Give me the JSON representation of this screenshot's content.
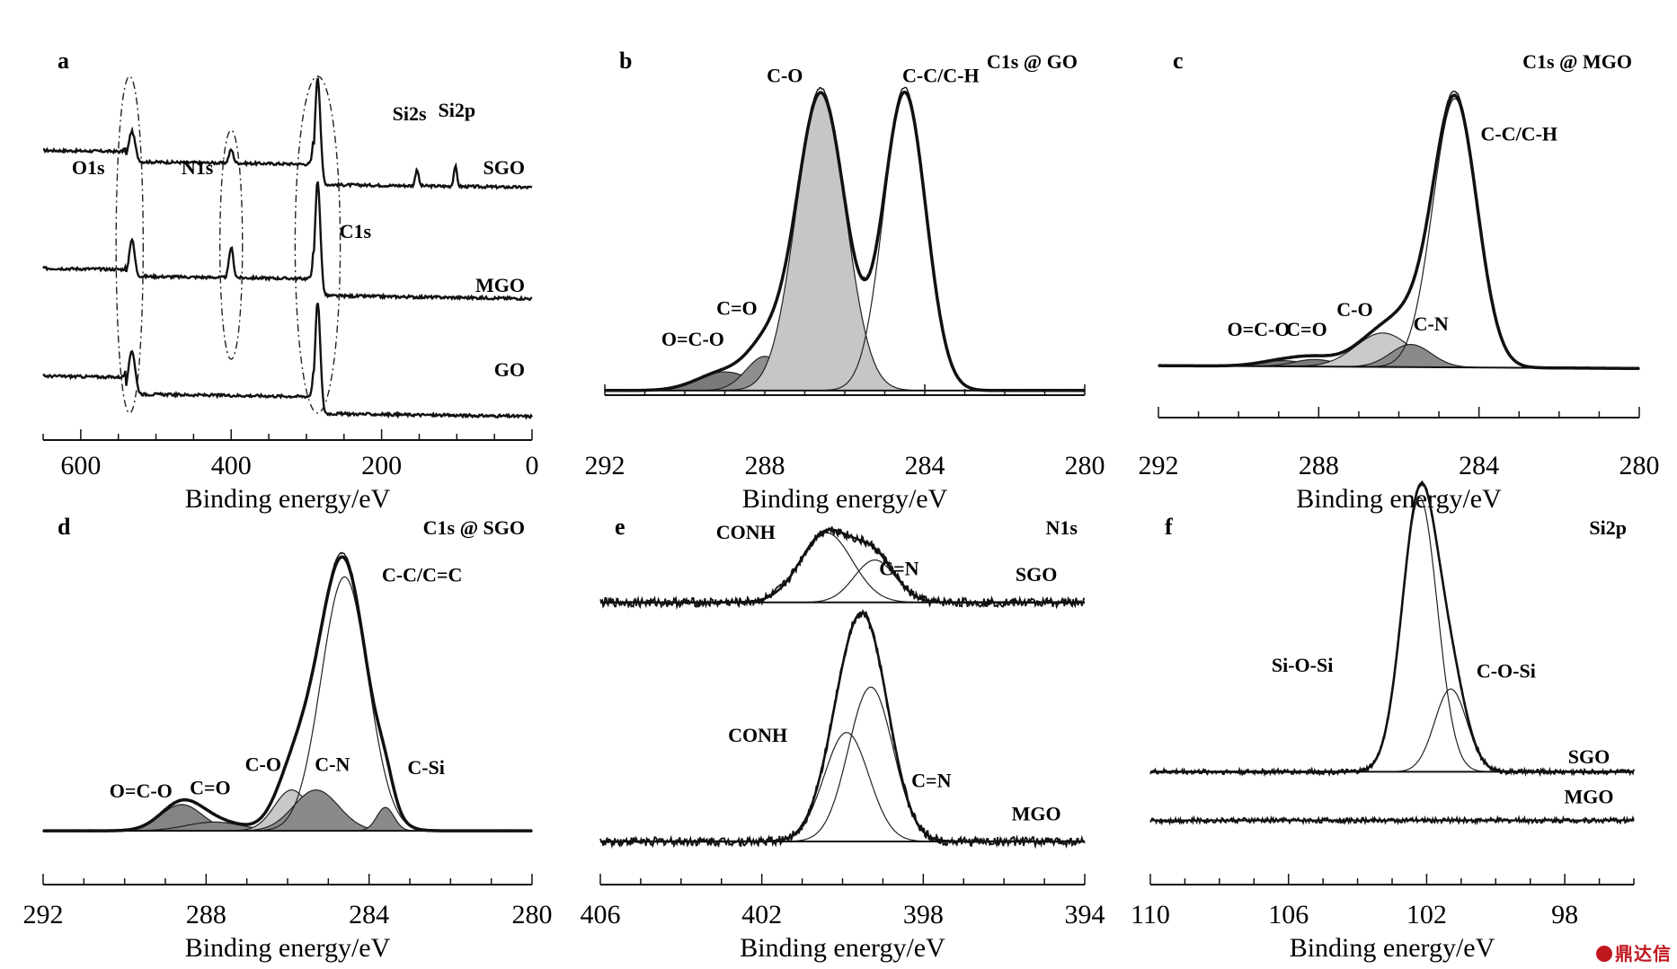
{
  "chart_data": [
    {
      "id": "a",
      "type": "line",
      "letter": "a",
      "title": "",
      "xlabel": "Binding energy/eV",
      "xlim": [
        650,
        0
      ],
      "xticks": [
        600,
        400,
        200,
        0
      ],
      "series": [
        {
          "name": "SGO",
          "offset": 0.72,
          "peaks": [
            [
              532,
              0.09,
              6
            ],
            [
              400,
              0.04,
              4
            ],
            [
              285,
              0.32,
              5
            ],
            [
              153,
              0.05,
              3
            ],
            [
              102,
              0.06,
              3
            ]
          ],
          "steps": [
            [
              540,
              -0.03
            ],
            [
              290,
              -0.06
            ]
          ]
        },
        {
          "name": "MGO",
          "offset": 0.37,
          "peaks": [
            [
              532,
              0.11,
              5
            ],
            [
              400,
              0.09,
              4
            ],
            [
              285,
              0.34,
              5
            ]
          ],
          "steps": [
            [
              540,
              -0.02
            ],
            [
              290,
              -0.05
            ]
          ]
        },
        {
          "name": "GO",
          "offset": 0.05,
          "peaks": [
            [
              532,
              0.13,
              6
            ],
            [
              285,
              0.33,
              5
            ]
          ],
          "steps": [
            [
              540,
              -0.05
            ],
            [
              290,
              -0.05
            ]
          ]
        }
      ],
      "annotations": [
        {
          "text": "O1s",
          "x": 590,
          "y": 0.67
        },
        {
          "text": "N1s",
          "x": 445,
          "y": 0.67
        },
        {
          "text": "C1s",
          "x": 235,
          "y": 0.48
        },
        {
          "text": "Si2s",
          "x": 163,
          "y": 0.83
        },
        {
          "text": "Si2p",
          "x": 100,
          "y": 0.84
        }
      ],
      "region_ellipses": [
        {
          "x_center": 535,
          "x_half": 18
        },
        {
          "x_center": 400,
          "x_half": 15
        },
        {
          "x_center": 285,
          "x_half": 30
        }
      ]
    },
    {
      "id": "b",
      "type": "area",
      "letter": "b",
      "title": "C1s @ GO",
      "xlabel": "Binding energy/eV",
      "xlim": [
        292,
        280
      ],
      "xticks": [
        292,
        288,
        284,
        280
      ],
      "components": [
        {
          "name": "O=C-O",
          "center": 289.0,
          "height": 0.06,
          "fwhm": 1.6,
          "fill": "#7a7a7a"
        },
        {
          "name": "C=O",
          "center": 288.0,
          "height": 0.11,
          "fwhm": 1.1,
          "fill": "#8e8e8e"
        },
        {
          "name": "C-O",
          "center": 286.6,
          "height": 0.96,
          "fwhm": 1.45,
          "fill": "#c6c6c6"
        },
        {
          "name": "C-C/C-H",
          "center": 284.5,
          "height": 0.96,
          "fwhm": 1.25,
          "fill": "none"
        }
      ],
      "labels": [
        {
          "text": "O=C-O",
          "x": 289.8,
          "y": 0.16
        },
        {
          "text": "C=O",
          "x": 288.7,
          "y": 0.26
        },
        {
          "text": "C-O",
          "x": 287.5,
          "y": 1.01
        },
        {
          "text": "C-C/C-H",
          "x": 283.6,
          "y": 1.01
        }
      ]
    },
    {
      "id": "c",
      "type": "area",
      "letter": "c",
      "title": "C1s @ MGO",
      "xlabel": "Binding energy/eV",
      "xlim": [
        292,
        280
      ],
      "xticks": [
        292,
        288,
        284,
        280
      ],
      "components": [
        {
          "name": "O=C-O",
          "center": 288.9,
          "height": 0.02,
          "fwhm": 1.4,
          "fill": "#7a7a7a"
        },
        {
          "name": "C=O",
          "center": 288.1,
          "height": 0.025,
          "fwhm": 1.2,
          "fill": "#7a7a7a"
        },
        {
          "name": "C-O",
          "center": 286.4,
          "height": 0.12,
          "fwhm": 1.6,
          "fill": "#cacaca"
        },
        {
          "name": "C-N",
          "center": 285.7,
          "height": 0.08,
          "fwhm": 1.2,
          "fill": "#8a8a8a"
        },
        {
          "name": "C-C/C-H",
          "center": 284.6,
          "height": 0.95,
          "fwhm": 1.3,
          "fill": "none"
        }
      ],
      "labels": [
        {
          "text": "O=C-O",
          "x": 289.5,
          "y": 0.13
        },
        {
          "text": "C=O",
          "x": 288.3,
          "y": 0.13
        },
        {
          "text": "C-O",
          "x": 287.1,
          "y": 0.2
        },
        {
          "text": "C-N",
          "x": 285.2,
          "y": 0.15
        },
        {
          "text": "C-C/C-H",
          "x": 283.0,
          "y": 0.82
        }
      ]
    },
    {
      "id": "d",
      "type": "area",
      "letter": "d",
      "title": "C1s @ SGO",
      "xlabel": "Binding energy/eV",
      "xlim": [
        292,
        280
      ],
      "xticks": [
        292,
        288,
        284,
        280
      ],
      "components": [
        {
          "name": "O=C-O",
          "center": 288.6,
          "height": 0.09,
          "fwhm": 1.2,
          "fill": "#858585"
        },
        {
          "name": "C=O",
          "center": 287.8,
          "height": 0.03,
          "fwhm": 1.6,
          "fill": "#858585"
        },
        {
          "name": "C-O",
          "center": 285.9,
          "height": 0.14,
          "fwhm": 1.0,
          "fill": "#c8c8c8"
        },
        {
          "name": "C-N",
          "center": 285.3,
          "height": 0.14,
          "fwhm": 1.3,
          "fill": "#8a8a8a"
        },
        {
          "name": "C-C/C=C",
          "center": 284.6,
          "height": 0.87,
          "fwhm": 1.35,
          "fill": "none"
        },
        {
          "name": "C-Si",
          "center": 283.6,
          "height": 0.08,
          "fwhm": 0.5,
          "fill": "#8a8a8a"
        }
      ],
      "labels": [
        {
          "text": "O=C-O",
          "x": 289.6,
          "y": 0.13
        },
        {
          "text": "C=O",
          "x": 287.9,
          "y": 0.14
        },
        {
          "text": "C-O",
          "x": 286.6,
          "y": 0.22
        },
        {
          "text": "C-N",
          "x": 284.9,
          "y": 0.22
        },
        {
          "text": "C-Si",
          "x": 282.6,
          "y": 0.21
        },
        {
          "text": "C-C/C=C",
          "x": 282.7,
          "y": 0.87
        }
      ]
    },
    {
      "id": "e",
      "type": "line",
      "letter": "e",
      "title": "N1s",
      "xlabel": "Binding energy/eV",
      "xlim": [
        406,
        394
      ],
      "xticks": [
        406,
        402,
        398,
        394
      ],
      "series": [
        {
          "name": "SGO",
          "offset": 0.79,
          "components": [
            {
              "name": "CONH",
              "center": 400.4,
              "height": 0.23,
              "fwhm": 1.5
            },
            {
              "name": "C=N",
              "center": 399.2,
              "height": 0.14,
              "fwhm": 1.2
            }
          ]
        },
        {
          "name": "MGO",
          "offset": 0.0,
          "components": [
            {
              "name": "CONH",
              "center": 399.9,
              "height": 0.36,
              "fwhm": 1.3
            },
            {
              "name": "C=N",
              "center": 399.3,
              "height": 0.51,
              "fwhm": 1.3
            }
          ]
        }
      ],
      "labels": [
        {
          "text": "CONH",
          "x": 402.4,
          "y": 1.0
        },
        {
          "text": "C=N",
          "x": 398.6,
          "y": 0.88
        },
        {
          "text": "SGO",
          "x": 395.2,
          "y": 0.86
        },
        {
          "text": "CONH",
          "x": 402.1,
          "y": 0.33
        },
        {
          "text": "C=N",
          "x": 397.8,
          "y": 0.18
        },
        {
          "text": "MGO",
          "x": 395.2,
          "y": 0.07
        }
      ]
    },
    {
      "id": "f",
      "type": "line",
      "letter": "f",
      "title": "Si2p",
      "xlabel": "Binding energy/eV",
      "xlim": [
        110,
        96
      ],
      "xticks": [
        110,
        106,
        102,
        98
      ],
      "series": [
        {
          "name": "SGO",
          "offset": 0.2,
          "components": [
            {
              "name": "Si-O-Si",
              "center": 102.2,
              "height": 0.96,
              "fwhm": 1.2
            },
            {
              "name": "C-O-Si",
              "center": 101.3,
              "height": 0.29,
              "fwhm": 1.1
            }
          ]
        },
        {
          "name": "MGO",
          "offset": 0.03,
          "components": []
        }
      ],
      "labels": [
        {
          "text": "Si-O-Si",
          "x": 105.6,
          "y": 0.55
        },
        {
          "text": "C-O-Si",
          "x": 99.7,
          "y": 0.53
        },
        {
          "text": "SGO",
          "x": 97.3,
          "y": 0.23
        },
        {
          "text": "MGO",
          "x": 97.3,
          "y": 0.09
        }
      ]
    }
  ],
  "watermark": "鼎达信"
}
